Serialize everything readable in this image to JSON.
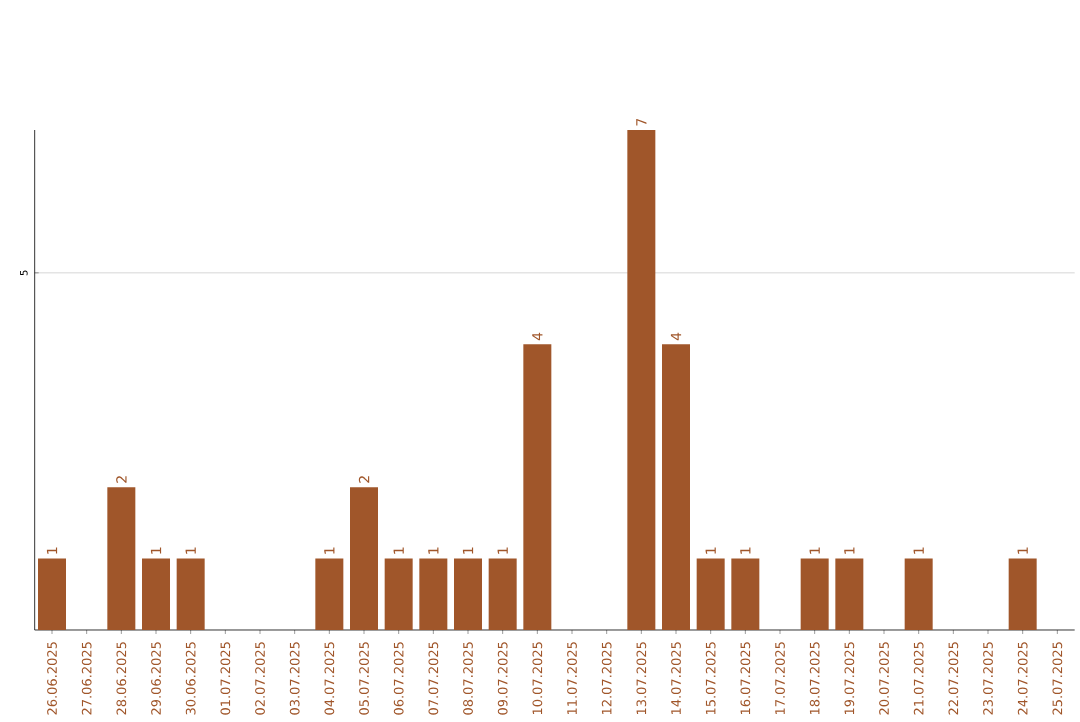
{
  "chart_data": {
    "type": "bar",
    "categories": [
      "26.06.2025",
      "27.06.2025",
      "28.06.2025",
      "29.06.2025",
      "30.06.2025",
      "01.07.2025",
      "02.07.2025",
      "03.07.2025",
      "04.07.2025",
      "05.07.2025",
      "06.07.2025",
      "07.07.2025",
      "08.07.2025",
      "09.07.2025",
      "10.07.2025",
      "11.07.2025",
      "12.07.2025",
      "13.07.2025",
      "14.07.2025",
      "15.07.2025",
      "16.07.2025",
      "17.07.2025",
      "18.07.2025",
      "19.07.2025",
      "20.07.2025",
      "21.07.2025",
      "22.07.2025",
      "23.07.2025",
      "24.07.2025",
      "25.07.2025"
    ],
    "values": [
      1,
      0,
      2,
      1,
      1,
      0,
      0,
      0,
      1,
      2,
      1,
      1,
      1,
      1,
      4,
      0,
      0,
      7,
      4,
      1,
      1,
      0,
      1,
      1,
      0,
      1,
      0,
      0,
      1,
      0
    ],
    "value_labels": [
      "1",
      null,
      "2",
      "1",
      "1",
      null,
      null,
      null,
      "1",
      "2",
      "1",
      "1",
      "1",
      "1",
      "4",
      null,
      null,
      "7",
      "4",
      "1",
      "1",
      null,
      "1",
      "1",
      null,
      "1",
      null,
      null,
      "1",
      null
    ],
    "color": "#a0562a",
    "ylim": [
      0,
      7
    ],
    "yticks": [
      5
    ],
    "grid": "y"
  }
}
